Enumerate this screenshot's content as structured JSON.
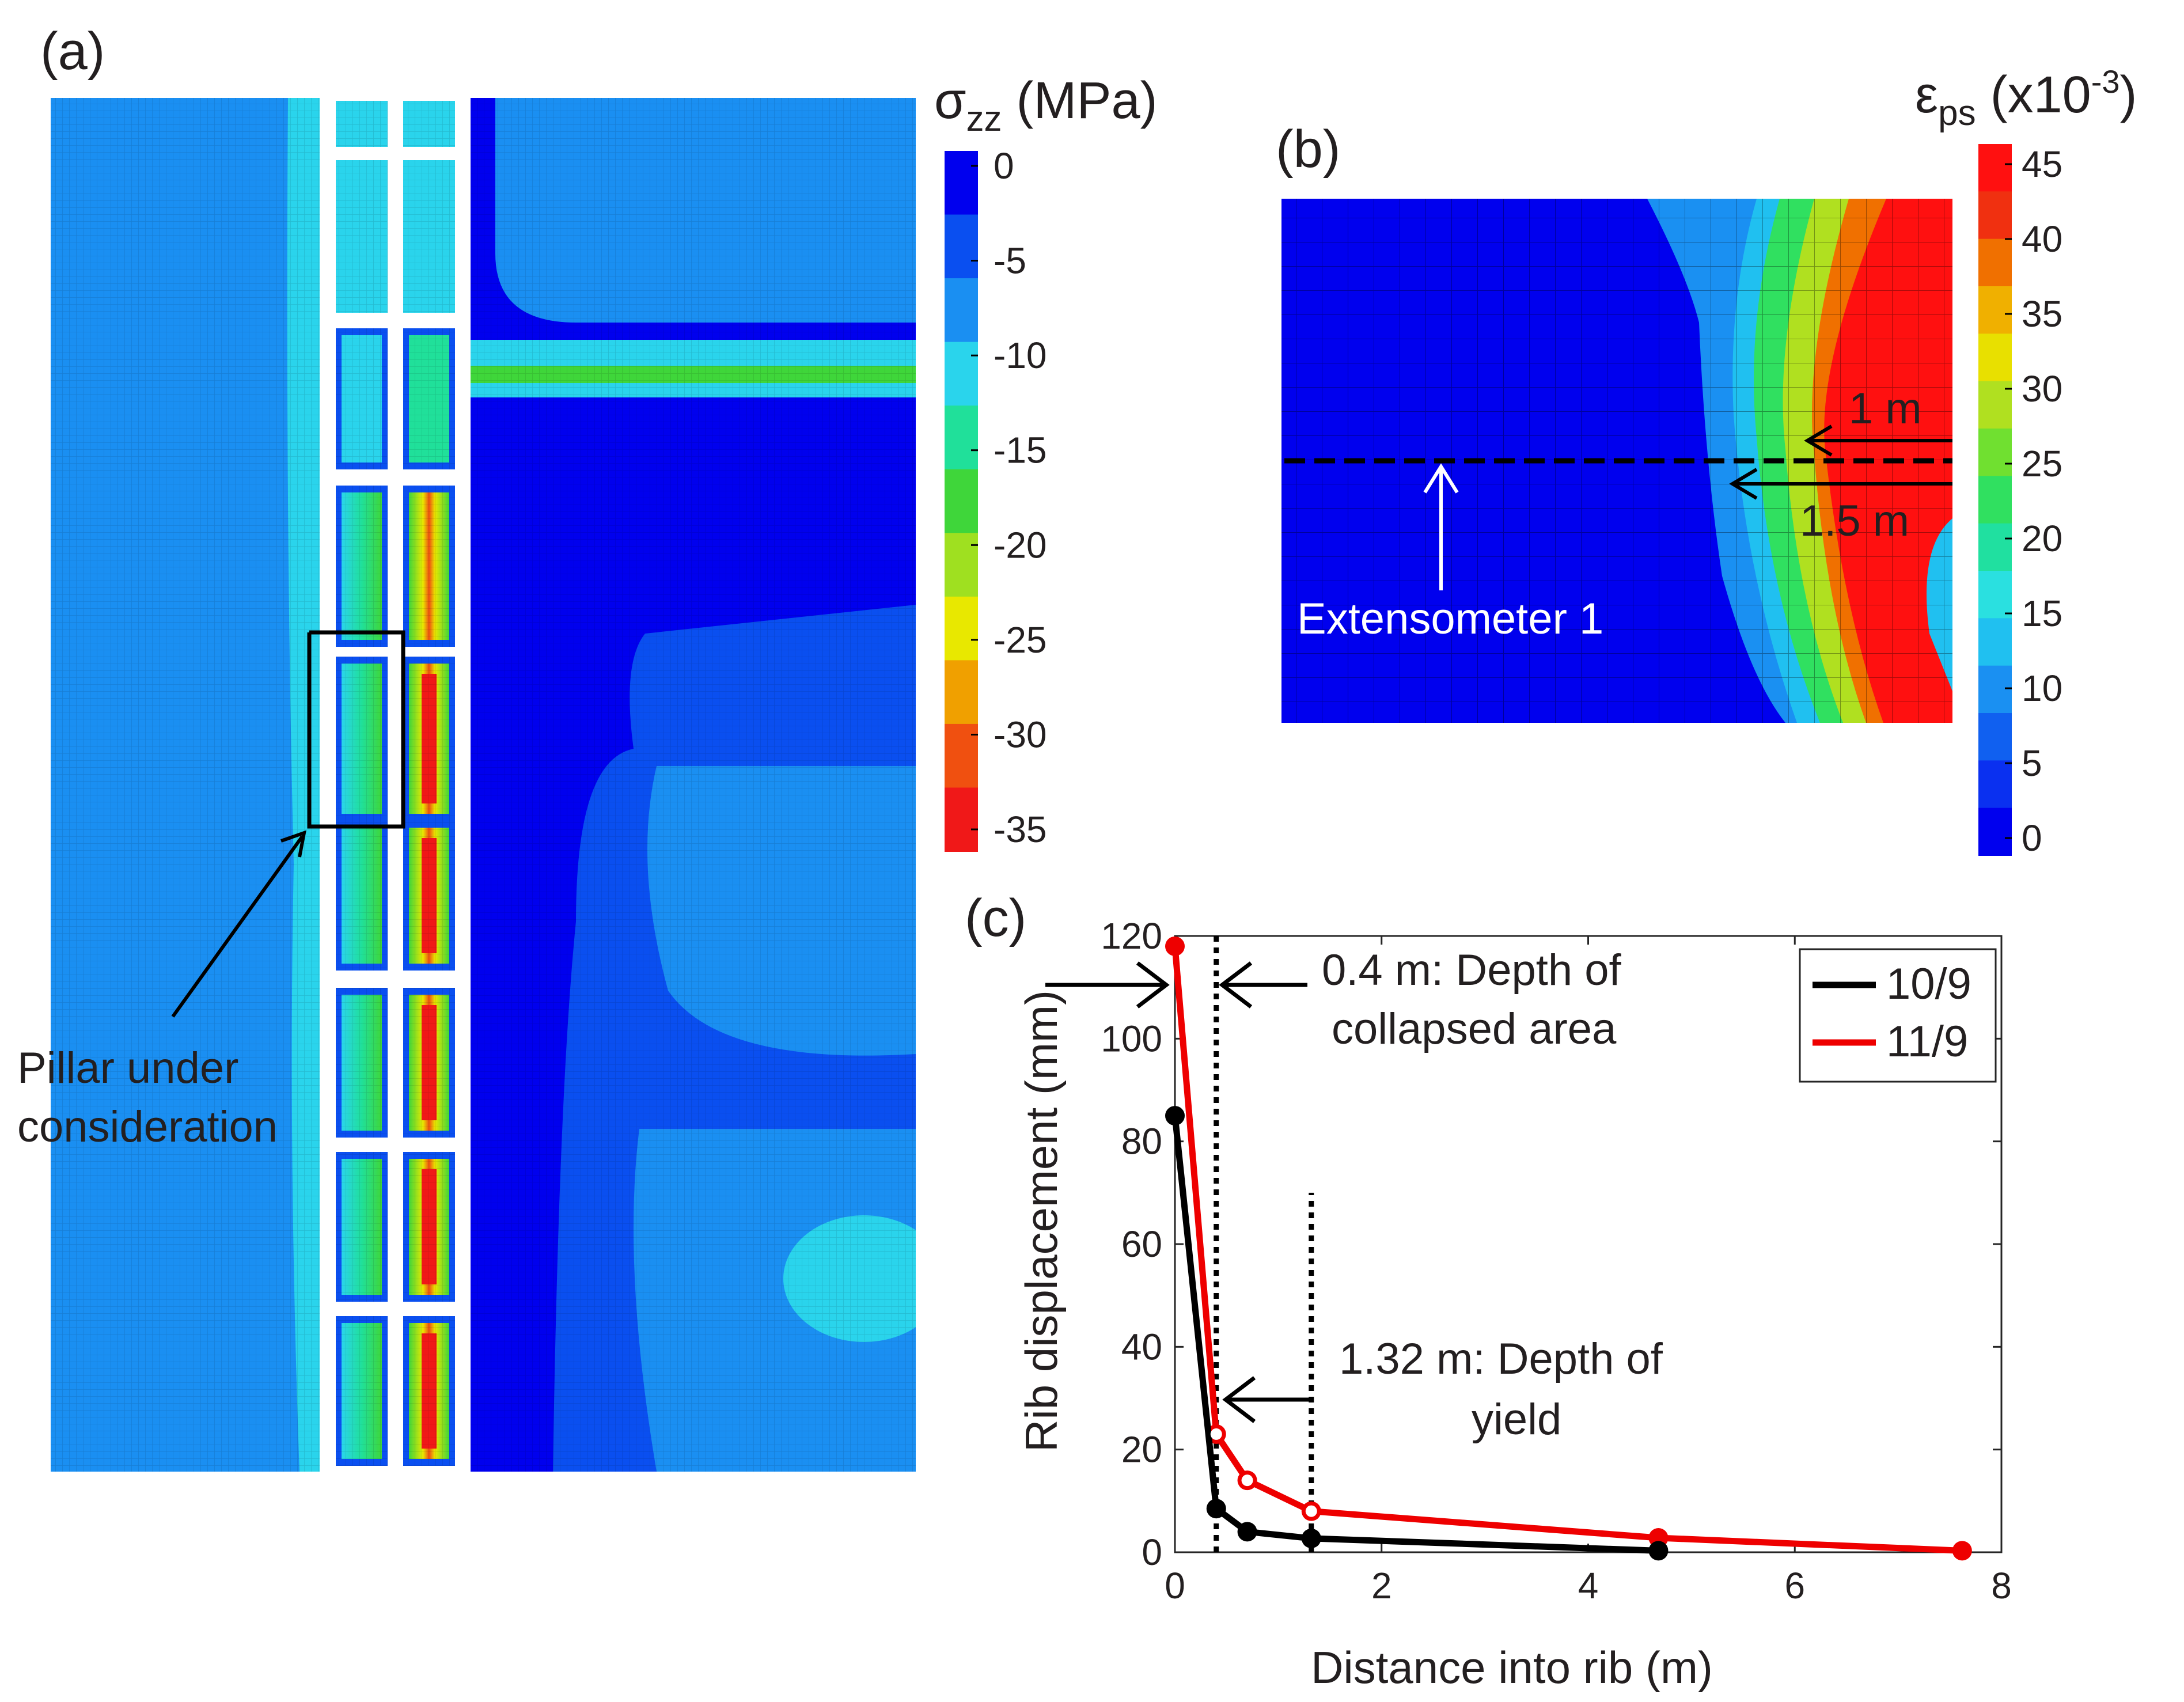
{
  "panel_a": {
    "label": "(a)",
    "annotation_line1": "Pillar under",
    "annotation_line2": "consideration",
    "colorbar": {
      "title_symbol": "σ",
      "title_subscript": "zz",
      "title_unit": " (MPa)",
      "ticks": [
        "0",
        "-5",
        "-10",
        "-15",
        "-20",
        "-25",
        "-30",
        "-35"
      ],
      "colors": [
        "#0000ee",
        "#0a4ff0",
        "#1a8ff2",
        "#2ad4ec",
        "#20e09a",
        "#3fd63a",
        "#9fe020",
        "#e8e800",
        "#f0a000",
        "#f05010",
        "#f01818"
      ]
    }
  },
  "panel_b": {
    "label": "(b)",
    "label_1m": "1 m",
    "label_15m": "1.5 m",
    "extensometer": "Extensometer 1",
    "colorbar": {
      "title_symbol": "ε",
      "title_subscript": "ps",
      "title_unit_prefix": " (x10",
      "title_superscript": "-3",
      "title_unit_suffix": ")",
      "ticks": [
        "45",
        "40",
        "35",
        "30",
        "25",
        "20",
        "15",
        "10",
        "5",
        "0"
      ],
      "colors": [
        "#0000ee",
        "#0a30f0",
        "#1060f0",
        "#1a90f2",
        "#20c0f0",
        "#2ae0e0",
        "#20e0a0",
        "#30e060",
        "#70e030",
        "#b0e020",
        "#e8e000",
        "#f0b000",
        "#f07000",
        "#f03010",
        "#ff1010"
      ]
    }
  },
  "panel_c": {
    "label": "(c)",
    "annotation_collapsed_1": "0.4 m: Depth of",
    "annotation_collapsed_2": "collapsed area",
    "annotation_yield_1": "1.32 m: Depth of",
    "annotation_yield_2": "yield",
    "chart_data": {
      "type": "line",
      "xlabel": "Distance into rib (m)",
      "ylabel": "Rib displacement (mm)",
      "xlim": [
        0,
        8
      ],
      "ylim": [
        0,
        120
      ],
      "xticks": [
        0,
        2,
        4,
        6,
        8
      ],
      "yticks": [
        0,
        20,
        40,
        60,
        80,
        100,
        120
      ],
      "legend_position": "top-right",
      "series": [
        {
          "name": "10/9",
          "color": "#000000",
          "x": [
            0,
            0.4,
            0.7,
            1.32,
            4.68
          ],
          "y": [
            85,
            8.5,
            4,
            2.7,
            0.3
          ]
        },
        {
          "name": "11/9",
          "color": "#ee0000",
          "x": [
            0,
            0.4,
            0.7,
            1.32,
            4.68,
            7.62
          ],
          "y": [
            118,
            23,
            14,
            8,
            2.8,
            0.3
          ]
        }
      ],
      "vlines": [
        {
          "x": 0.4,
          "y_top": 120
        },
        {
          "x": 1.32,
          "y_top": 70
        }
      ]
    }
  }
}
